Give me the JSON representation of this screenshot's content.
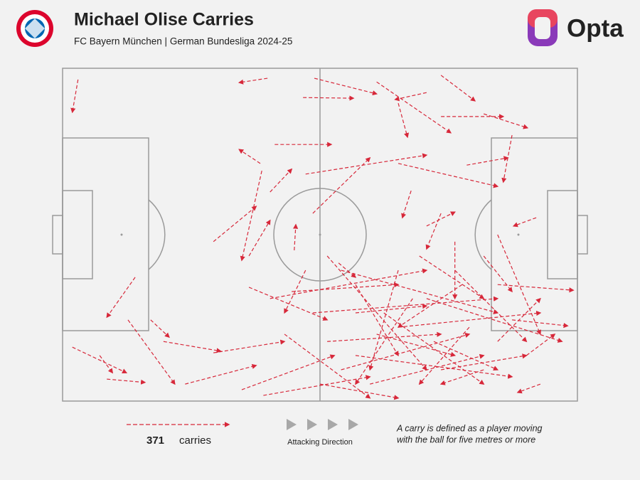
{
  "title": "Michael Olise Carries",
  "subtitle": "FC Bayern München | German Bundesliga 2024-25",
  "logo": "Opta",
  "chart_data": {
    "type": "arrow",
    "color": "#d7283a",
    "xlim": [
      0,
      100
    ],
    "ylim": [
      0,
      100
    ],
    "carry_count": 371,
    "count_label": "carries",
    "direction_label": "Attacking Direction",
    "note": [
      "A carry is defined as a player moving",
      "with the ball for five metres or more"
    ],
    "x": [
      3.0,
      39.8,
      48.9,
      46.7,
      61.0,
      73.5,
      70.7,
      65.2,
      73.5,
      81.8,
      41.2,
      38.4,
      47.2,
      87.3,
      78.5,
      65.2,
      40.3,
      48.6,
      67.7,
      70.7,
      92.0,
      45.0,
      38.7,
      14.1,
      17.1,
      1.9,
      7.2,
      8.6,
      12.7,
      19.6,
      23.8,
      34.8,
      39.0,
      29.3,
      36.2,
      40.3,
      44.5,
      48.6,
      51.4,
      54.1,
      56.9,
      59.7,
      65.2,
      70.7,
      76.2,
      84.5,
      87.3,
      90.1,
      92.8,
      73.5,
      76.2,
      81.8,
      84.5,
      65.2,
      68.0,
      56.9,
      51.4,
      62.4,
      73.5,
      79.0,
      50.0,
      43.1,
      54.1,
      56.9,
      77.6,
      84.5,
      69.3,
      72.1,
      81.8,
      61.0,
      36.2,
      53.6,
      47.2,
      29.3
    ],
    "y": [
      96.6,
      97.0,
      97.0,
      91.2,
      95.9,
      97.9,
      92.7,
      89.5,
      85.5,
      86.3,
      77.1,
      71.4,
      68.2,
      79.9,
      70.9,
      71.4,
      62.8,
      56.4,
      63.2,
      52.6,
      55.1,
      45.3,
      69.2,
      37.2,
      24.4,
      16.2,
      13.7,
      6.6,
      24.4,
      17.9,
      5.1,
      3.4,
      1.7,
      14.5,
      34.2,
      30.8,
      32.9,
      26.5,
      17.9,
      9.4,
      13.7,
      5.1,
      22.2,
      30.8,
      39.3,
      35.0,
      24.4,
      13.7,
      5.1,
      56.4,
      47.9,
      43.6,
      50.0,
      39.3,
      30.8,
      35.0,
      43.6,
      26.5,
      9.4,
      22.2,
      5.1,
      20.1,
      39.3,
      26.5,
      35.0,
      17.9,
      43.6,
      17.9,
      9.4,
      20.1,
      43.6,
      41.5,
      39.3,
      47.9
    ],
    "end_x": [
      1.9,
      34.3,
      61.0,
      56.5,
      75.4,
      80.1,
      64.6,
      67.0,
      85.6,
      90.3,
      52.2,
      34.3,
      70.7,
      85.6,
      86.5,
      84.5,
      44.5,
      59.7,
      66.0,
      76.2,
      87.6,
      45.3,
      34.8,
      8.6,
      20.7,
      12.4,
      9.7,
      16.0,
      21.8,
      30.7,
      37.6,
      52.8,
      59.7,
      43.1,
      51.4,
      70.7,
      65.2,
      84.5,
      73.5,
      79.0,
      87.3,
      81.8,
      92.8,
      97.0,
      90.1,
      99.2,
      98.1,
      95.6,
      88.4,
      70.7,
      76.2,
      87.3,
      92.8,
      59.7,
      56.9,
      65.2,
      70.7,
      81.8,
      90.1,
      69.3,
      65.2,
      59.7,
      84.5,
      70.7,
      65.2,
      92.8,
      81.8,
      84.5,
      73.5,
      76.2,
      40.3,
      56.9,
      43.1,
      37.6
    ],
    "end_y": [
      86.8,
      95.7,
      92.3,
      91.0,
      80.6,
      90.2,
      90.6,
      79.3,
      85.5,
      82.1,
      77.1,
      75.6,
      73.9,
      65.8,
      73.1,
      64.5,
      69.7,
      73.1,
      55.1,
      56.8,
      52.6,
      53.0,
      42.3,
      25.2,
      19.2,
      8.5,
      8.5,
      5.6,
      5.1,
      15.0,
      10.7,
      13.7,
      7.3,
      17.9,
      24.4,
      39.3,
      35.0,
      30.8,
      20.1,
      20.1,
      7.3,
      13.7,
      26.5,
      17.9,
      17.9,
      33.3,
      22.6,
      20.1,
      2.6,
      45.7,
      30.8,
      32.9,
      20.1,
      9.4,
      5.1,
      13.7,
      9.4,
      5.1,
      13.7,
      5.1,
      0.9,
      0.9,
      26.5,
      28.6,
      22.2,
      30.8,
      30.8,
      9.4,
      5.1,
      13.7,
      54.3,
      37.2,
      26.5,
      58.5
    ]
  }
}
